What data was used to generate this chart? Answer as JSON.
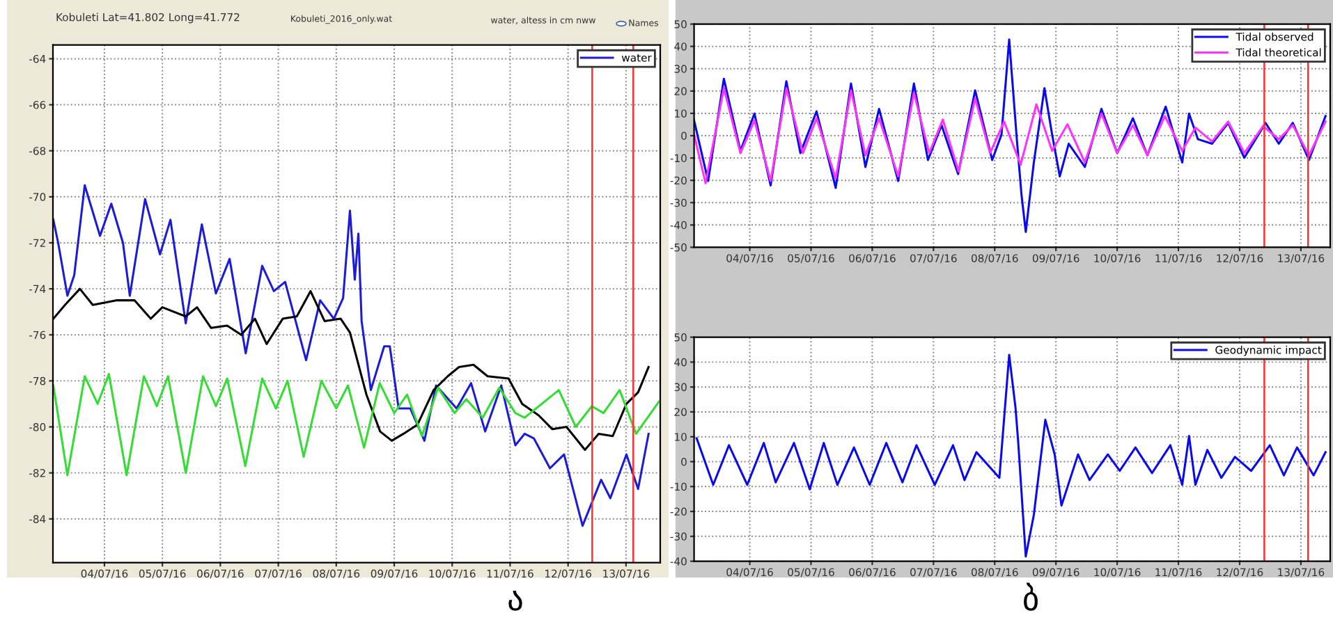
{
  "chart_data": [
    {
      "type": "line",
      "title": "Kobuleti Lat=41.802 Long=41.772",
      "annotations": [
        "Kobuleti_2016_only.wat",
        "water, altess in cm nww",
        "Names",
        "ა"
      ],
      "series": [
        {
          "name": "water",
          "color": "#1c1cd8",
          "x": [
            "2016-07-03T02:50",
            "2016-07-03T04:50",
            "2016-07-03T08:40",
            "2016-07-03T11:30",
            "2016-07-03T15:50",
            "2016-07-03T22:10",
            "2016-07-04T02:50",
            "2016-07-04T07:40",
            "2016-07-04T10:30",
            "2016-07-04T16:50",
            "2016-07-04T23:00",
            "2016-07-05T03:20",
            "2016-07-05T09:40",
            "2016-07-05T16:20",
            "2016-07-05T22:10",
            "2016-07-06T03:50",
            "2016-07-06T10:30",
            "2016-07-06T17:20",
            "2016-07-06T22:10",
            "2016-07-07T02:50",
            "2016-07-07T11:30",
            "2016-07-07T17:20",
            "2016-07-07T23:00",
            "2016-07-08T02:50",
            "2016-07-08T05:40",
            "2016-07-08T07:40",
            "2016-07-08T09:10",
            "2016-07-08T10:30",
            "2016-07-08T14:20",
            "2016-07-08T19:50",
            "2016-07-08T22:10",
            "2016-07-09T01:50",
            "2016-07-09T06:40",
            "2016-07-09T12:30",
            "2016-07-09T17:20",
            "2016-07-10T01:50",
            "2016-07-10T07:50",
            "2016-07-10T13:40",
            "2016-07-10T20:20",
            "2016-07-11T02:10",
            "2016-07-11T06:00",
            "2016-07-11T09:50",
            "2016-07-11T16:30",
            "2016-07-11T22:20",
            "2016-07-12T06:00",
            "2016-07-12T13:40",
            "2016-07-12T17:30",
            "2016-07-13T00:10",
            "2016-07-13T05:00",
            "2016-07-13T09:20"
          ],
          "values": [
            -71.0,
            -72.0,
            -74.3,
            -73.4,
            -69.5,
            -71.7,
            -70.3,
            -72.0,
            -74.3,
            -70.1,
            -72.5,
            -71.0,
            -75.5,
            -71.2,
            -74.2,
            -72.7,
            -76.8,
            -73.0,
            -74.1,
            -73.7,
            -77.1,
            -74.5,
            -75.3,
            -74.4,
            -70.6,
            -73.6,
            -71.6,
            -75.4,
            -78.4,
            -76.5,
            -76.5,
            -79.2,
            -79.2,
            -80.6,
            -78.2,
            -79.2,
            -78.1,
            -80.2,
            -78.2,
            -80.8,
            -80.3,
            -80.5,
            -81.8,
            -81.2,
            -84.3,
            -82.3,
            -83.1,
            -81.2,
            -82.7,
            -80.3
          ]
        },
        {
          "color": "#000000",
          "x": [
            "2016-07-03T02:50",
            "2016-07-03T07:40",
            "2016-07-03T13:50",
            "2016-07-03T19:10",
            "2016-07-04T04:50",
            "2016-07-04T12:30",
            "2016-07-04T19:10",
            "2016-07-05T00:00",
            "2016-07-05T09:40",
            "2016-07-05T14:20",
            "2016-07-05T20:10",
            "2016-07-06T02:50",
            "2016-07-06T08:40",
            "2016-07-06T14:20",
            "2016-07-06T19:10",
            "2016-07-07T01:50",
            "2016-07-07T07:40",
            "2016-07-07T13:20",
            "2016-07-07T19:10",
            "2016-07-08T01:50",
            "2016-07-08T05:40",
            "2016-07-08T12:30",
            "2016-07-08T18:10",
            "2016-07-08T23:00",
            "2016-07-09T03:50",
            "2016-07-09T09:40",
            "2016-07-09T16:20",
            "2016-07-09T22:10",
            "2016-07-10T02:50",
            "2016-07-10T08:50",
            "2016-07-10T14:40",
            "2016-07-10T23:20",
            "2016-07-11T05:00",
            "2016-07-11T11:50",
            "2016-07-11T17:30",
            "2016-07-11T23:20",
            "2016-07-12T07:00",
            "2016-07-12T12:40",
            "2016-07-12T18:30",
            "2016-07-13T00:10",
            "2016-07-13T05:00",
            "2016-07-13T09:20"
          ],
          "values": [
            -75.3,
            -74.7,
            -74.0,
            -74.7,
            -74.5,
            -74.5,
            -75.3,
            -74.8,
            -75.2,
            -74.8,
            -75.7,
            -75.6,
            -76.0,
            -75.3,
            -76.4,
            -75.3,
            -75.2,
            -74.1,
            -75.4,
            -75.3,
            -75.9,
            -78.6,
            -80.2,
            -80.6,
            -80.3,
            -79.9,
            -78.4,
            -77.8,
            -77.4,
            -77.3,
            -77.8,
            -77.9,
            -79.0,
            -79.5,
            -80.1,
            -80.0,
            -81.0,
            -80.3,
            -80.4,
            -79.0,
            -78.5,
            -77.4
          ]
        },
        {
          "color": "#33dd33",
          "x": [
            "2016-07-03T02:50",
            "2016-07-03T08:40",
            "2016-07-03T15:50",
            "2016-07-03T21:10",
            "2016-07-04T01:50",
            "2016-07-04T09:10",
            "2016-07-04T16:20",
            "2016-07-04T21:40",
            "2016-07-05T02:20",
            "2016-07-05T09:40",
            "2016-07-05T16:50",
            "2016-07-05T22:10",
            "2016-07-06T02:50",
            "2016-07-06T10:20",
            "2016-07-06T17:20",
            "2016-07-06T23:00",
            "2016-07-07T03:50",
            "2016-07-07T10:30",
            "2016-07-07T17:50",
            "2016-07-08T00:00",
            "2016-07-08T04:50",
            "2016-07-08T11:30",
            "2016-07-08T18:00",
            "2016-07-09T00:00",
            "2016-07-09T05:20",
            "2016-07-09T11:30",
            "2016-07-09T18:10",
            "2016-07-10T01:00",
            "2016-07-10T05:50",
            "2016-07-10T12:40",
            "2016-07-10T19:30",
            "2016-07-11T02:10",
            "2016-07-11T06:00",
            "2016-07-11T20:10",
            "2016-07-12T03:10",
            "2016-07-12T09:50",
            "2016-07-12T14:40",
            "2016-07-12T21:20",
            "2016-07-13T04:10",
            "2016-07-13T13:40"
          ],
          "values": [
            -78.2,
            -82.1,
            -77.8,
            -79.0,
            -77.7,
            -82.1,
            -77.8,
            -79.1,
            -77.8,
            -82.0,
            -77.8,
            -79.1,
            -77.9,
            -81.7,
            -77.9,
            -79.2,
            -78.0,
            -81.3,
            -78.0,
            -79.2,
            -78.2,
            -80.9,
            -78.1,
            -79.4,
            -78.6,
            -80.4,
            -78.3,
            -79.4,
            -78.8,
            -79.6,
            -78.3,
            -79.4,
            -79.6,
            -78.4,
            -80.0,
            -79.1,
            -79.4,
            -78.4,
            -80.3,
            -78.9
          ]
        }
      ],
      "xlim": [
        "2016-07-03T02:40",
        "2016-07-13T14:10"
      ],
      "xticks": [
        {
          "value": "2016-07-04",
          "label": "04/07/16"
        },
        {
          "value": "2016-07-05",
          "label": "05/07/16"
        },
        {
          "value": "2016-07-06",
          "label": "06/07/16"
        },
        {
          "value": "2016-07-07",
          "label": "07/07/16"
        },
        {
          "value": "2016-07-08",
          "label": "08/07/16"
        },
        {
          "value": "2016-07-09",
          "label": "09/07/16"
        },
        {
          "value": "2016-07-10",
          "label": "10/07/16"
        },
        {
          "value": "2016-07-11",
          "label": "11/07/16"
        },
        {
          "value": "2016-07-12",
          "label": "12/07/16"
        },
        {
          "value": "2016-07-13",
          "label": "13/07/16"
        }
      ],
      "ylim": [
        -85.9,
        -63.4
      ],
      "yticks": [
        -84,
        -82,
        -80,
        -78,
        -76,
        -74,
        -72,
        -70,
        -68,
        -66,
        -64
      ],
      "ref_lines": [
        {
          "axis": "x",
          "value": "2016-07-12T10:00",
          "color": "#ff3030"
        },
        {
          "axis": "x",
          "value": "2016-07-13T03:00",
          "color": "#ff3030"
        }
      ],
      "grid": true,
      "legend": "top right"
    },
    {
      "type": "line",
      "series": [
        {
          "name": "Tidal observed",
          "color": "#0a0aee",
          "x": [
            "2016-07-03T02:10",
            "2016-07-03T07:40",
            "2016-07-03T13:50",
            "2016-07-03T20:20",
            "2016-07-04T01:50",
            "2016-07-04T08:10",
            "2016-07-04T14:20",
            "2016-07-04T19:50",
            "2016-07-05T02:10",
            "2016-07-05T09:40",
            "2016-07-05T15:40",
            "2016-07-05T21:20",
            "2016-07-06T02:40",
            "2016-07-06T10:10",
            "2016-07-06T16:20",
            "2016-07-06T21:50",
            "2016-07-07T03:10",
            "2016-07-07T09:40",
            "2016-07-07T16:20",
            "2016-07-07T23:00",
            "2016-07-08T02:40",
            "2016-07-08T05:40",
            "2016-07-08T08:40",
            "2016-07-08T10:30",
            "2016-07-08T12:10",
            "2016-07-08T15:20",
            "2016-07-08T19:30",
            "2016-07-08T22:30",
            "2016-07-09T01:30",
            "2016-07-09T05:00",
            "2016-07-09T11:20",
            "2016-07-09T17:50",
            "2016-07-10T00:00",
            "2016-07-10T06:10",
            "2016-07-10T11:50",
            "2016-07-10T19:00",
            "2016-07-11T01:30",
            "2016-07-11T04:10",
            "2016-07-11T07:40",
            "2016-07-11T13:10",
            "2016-07-11T19:30",
            "2016-07-12T01:50",
            "2016-07-12T10:10",
            "2016-07-12T15:20",
            "2016-07-12T20:50",
            "2016-07-13T03:10",
            "2016-07-13T09:40"
          ],
          "values": [
            6.8,
            -20.3,
            25.5,
            -6.8,
            9.9,
            -22.3,
            24.4,
            -7.8,
            10.9,
            -23.4,
            23.4,
            -14.0,
            12.0,
            -20.3,
            23.4,
            -10.9,
            4.7,
            -17.2,
            20.3,
            -10.9,
            0.5,
            43.1,
            -1.6,
            -26.5,
            -43.1,
            -12.0,
            21.3,
            0.5,
            -18.2,
            -3.6,
            -14.0,
            12.0,
            -7.8,
            7.8,
            -8.8,
            13.0,
            -12.0,
            9.9,
            -1.6,
            -3.6,
            5.7,
            -9.9,
            5.7,
            -3.6,
            5.7,
            -10.9,
            8.8
          ]
        },
        {
          "name": "Tidal theoretical",
          "color": "#ff33ff",
          "x": [
            "2016-07-03T02:10",
            "2016-07-03T06:40",
            "2016-07-03T13:50",
            "2016-07-03T20:20",
            "2016-07-04T01:50",
            "2016-07-04T08:10",
            "2016-07-04T14:20",
            "2016-07-04T20:50",
            "2016-07-05T02:10",
            "2016-07-05T09:40",
            "2016-07-05T15:40",
            "2016-07-05T21:20",
            "2016-07-06T02:40",
            "2016-07-06T10:10",
            "2016-07-06T16:20",
            "2016-07-06T22:20",
            "2016-07-07T03:40",
            "2016-07-07T09:50",
            "2016-07-07T16:20",
            "2016-07-07T22:10",
            "2016-07-08T03:40",
            "2016-07-08T10:10",
            "2016-07-08T16:20",
            "2016-07-08T22:30",
            "2016-07-09T04:30",
            "2016-07-09T11:20",
            "2016-07-09T17:50",
            "2016-07-10T00:00",
            "2016-07-10T06:10",
            "2016-07-10T11:50",
            "2016-07-10T18:40",
            "2016-07-11T01:30",
            "2016-07-11T06:40",
            "2016-07-11T13:10",
            "2016-07-11T19:30",
            "2016-07-12T01:50",
            "2016-07-12T09:10",
            "2016-07-12T15:20",
            "2016-07-12T20:50",
            "2016-07-13T03:10",
            "2016-07-13T09:40"
          ],
          "values": [
            0.5,
            -21.3,
            21.3,
            -7.8,
            6.8,
            -20.3,
            21.3,
            -7.8,
            7.8,
            -19.2,
            20.3,
            -8.8,
            7.8,
            -18.2,
            19.2,
            -7.8,
            7.2,
            -16.1,
            16.7,
            -7.8,
            6.3,
            -13.0,
            14.0,
            -6.8,
            5.1,
            -12.0,
            9.9,
            -7.8,
            4.7,
            -8.8,
            8.8,
            -6.8,
            3.6,
            -2.6,
            6.3,
            -7.8,
            4.3,
            -1.6,
            4.7,
            -8.8,
            6.3
          ]
        }
      ],
      "xlim": [
        "2016-07-03T02:10",
        "2016-07-13T11:30"
      ],
      "xticks": [
        {
          "value": "2016-07-04",
          "label": "04/07/16"
        },
        {
          "value": "2016-07-05",
          "label": "05/07/16"
        },
        {
          "value": "2016-07-06",
          "label": "06/07/16"
        },
        {
          "value": "2016-07-07",
          "label": "07/07/16"
        },
        {
          "value": "2016-07-08",
          "label": "08/07/16"
        },
        {
          "value": "2016-07-09",
          "label": "09/07/16"
        },
        {
          "value": "2016-07-10",
          "label": "10/07/16"
        },
        {
          "value": "2016-07-11",
          "label": "11/07/16"
        },
        {
          "value": "2016-07-12",
          "label": "12/07/16"
        },
        {
          "value": "2016-07-13",
          "label": "13/07/16"
        }
      ],
      "ylim": [
        -50,
        50
      ],
      "yticks": [
        -50,
        -40,
        -30,
        -20,
        -10,
        0,
        10,
        20,
        30,
        40,
        50
      ],
      "ref_lines": [
        {
          "axis": "x",
          "value": "2016-07-12T09:40",
          "color": "#ff3030"
        },
        {
          "axis": "x",
          "value": "2016-07-13T02:50",
          "color": "#ff3030"
        }
      ],
      "grid": true,
      "legend": "top right"
    },
    {
      "type": "line",
      "annotations": [
        "ბ"
      ],
      "series": [
        {
          "name": "Geodynamic impact",
          "color": "#0a0aee",
          "x": [
            "2016-07-03T03:10",
            "2016-07-03T09:40",
            "2016-07-03T15:50",
            "2016-07-03T23:00",
            "2016-07-04T05:30",
            "2016-07-04T10:10",
            "2016-07-04T17:20",
            "2016-07-04T23:30",
            "2016-07-05T05:00",
            "2016-07-05T10:20",
            "2016-07-05T16:50",
            "2016-07-05T23:00",
            "2016-07-06T05:30",
            "2016-07-06T11:50",
            "2016-07-06T17:20",
            "2016-07-07T00:30",
            "2016-07-07T07:40",
            "2016-07-07T12:10",
            "2016-07-07T16:50",
            "2016-07-08T01:50",
            "2016-07-08T05:40",
            "2016-07-08T08:10",
            "2016-07-08T09:10",
            "2016-07-08T12:10",
            "2016-07-08T15:20",
            "2016-07-08T19:50",
            "2016-07-08T23:30",
            "2016-07-09T02:10",
            "2016-07-09T08:40",
            "2016-07-09T13:10",
            "2016-07-09T20:20",
            "2016-07-10T01:00",
            "2016-07-10T07:10",
            "2016-07-10T13:40",
            "2016-07-10T20:50",
            "2016-07-11T01:30",
            "2016-07-11T04:10",
            "2016-07-11T06:40",
            "2016-07-11T11:20",
            "2016-07-11T16:50",
            "2016-07-11T22:10",
            "2016-07-12T04:30",
            "2016-07-12T11:50",
            "2016-07-12T17:20",
            "2016-07-12T22:30",
            "2016-07-13T05:00",
            "2016-07-13T09:40"
          ],
          "values": [
            9.4,
            -9.3,
            6.6,
            -9.3,
            7.5,
            -8.3,
            7.5,
            -11.1,
            7.5,
            -9.3,
            5.7,
            -9.3,
            7.5,
            -8.3,
            6.6,
            -9.3,
            6.6,
            -7.4,
            3.8,
            -6.5,
            42.9,
            21.5,
            8.4,
            -38.1,
            -21.4,
            16.8,
            2.9,
            -17.6,
            2.9,
            -7.4,
            2.9,
            -3.7,
            5.7,
            -4.6,
            6.6,
            -9.3,
            10.3,
            -9.3,
            4.7,
            -6.5,
            1.9,
            -3.7,
            6.6,
            -5.5,
            5.7,
            -5.5,
            3.8
          ]
        }
      ],
      "xlim": [
        "2016-07-03T02:10",
        "2016-07-13T11:30"
      ],
      "xticks": [
        {
          "value": "2016-07-04",
          "label": "04/07/16"
        },
        {
          "value": "2016-07-05",
          "label": "05/07/16"
        },
        {
          "value": "2016-07-06",
          "label": "06/07/16"
        },
        {
          "value": "2016-07-07",
          "label": "07/07/16"
        },
        {
          "value": "2016-07-08",
          "label": "08/07/16"
        },
        {
          "value": "2016-07-09",
          "label": "09/07/16"
        },
        {
          "value": "2016-07-10",
          "label": "10/07/16"
        },
        {
          "value": "2016-07-11",
          "label": "11/07/16"
        },
        {
          "value": "2016-07-12",
          "label": "12/07/16"
        },
        {
          "value": "2016-07-13",
          "label": "13/07/16"
        }
      ],
      "ylim": [
        -40,
        50
      ],
      "yticks": [
        -40,
        -30,
        -20,
        -10,
        0,
        10,
        20,
        30,
        40,
        50
      ],
      "ref_lines": [
        {
          "axis": "x",
          "value": "2016-07-12T09:40",
          "color": "#ff3030"
        },
        {
          "axis": "x",
          "value": "2016-07-13T02:50",
          "color": "#ff3030"
        }
      ],
      "grid": true,
      "legend": "top right"
    }
  ]
}
